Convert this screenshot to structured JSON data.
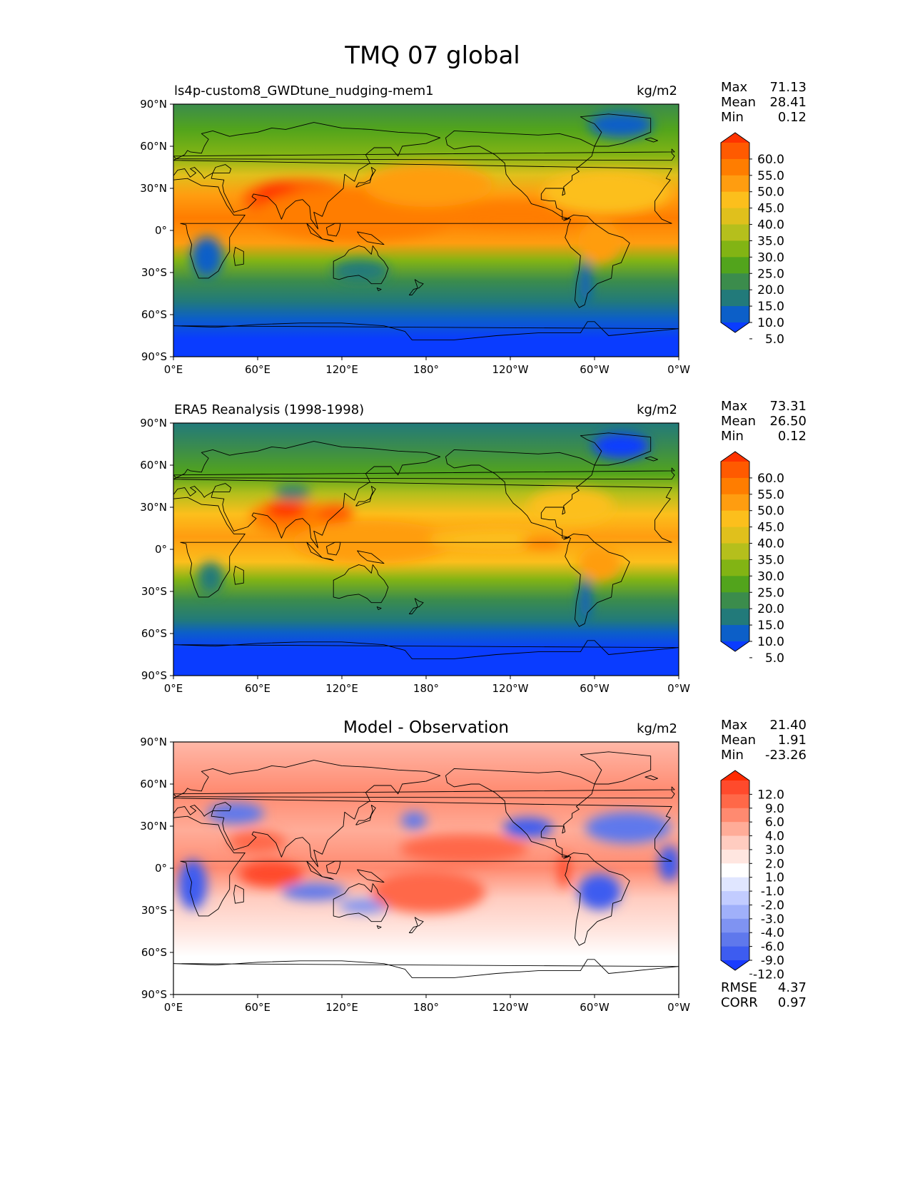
{
  "title": "TMQ 07 global",
  "lat_labels": [
    "90°N",
    "60°N",
    "30°N",
    "0°",
    "30°S",
    "60°S",
    "90°S"
  ],
  "lon_labels": [
    "0°E",
    "60°E",
    "120°E",
    "180°",
    "120°W",
    "60°W",
    "0°W"
  ],
  "panels": [
    {
      "id": "model",
      "title": "ls4p-custom8_GWDtune_nudging-mem1",
      "units": "kg/m2",
      "stats": [
        {
          "label": "Max",
          "value": "71.13"
        },
        {
          "label": "Mean",
          "value": "28.41"
        },
        {
          "label": "Min",
          "value": "0.12"
        }
      ],
      "colorbar_labels": [
        "60.0",
        "55.0",
        "50.0",
        "45.0",
        "40.0",
        "35.0",
        "30.0",
        "25.0",
        "20.0",
        "15.0",
        "10.0",
        "5.0"
      ],
      "colors": [
        "#ff3300",
        "#ff5a00",
        "#ff7d00",
        "#ff9d10",
        "#fcbf1c",
        "#e0c01c",
        "#b5bf1c",
        "#82b414",
        "#52a41c",
        "#3b8c4c",
        "#227a7a",
        "#0c5fc8",
        "#0a3cff"
      ]
    },
    {
      "id": "obs",
      "title": "ERA5 Reanalysis (1998-1998)",
      "units": "kg/m2",
      "stats": [
        {
          "label": "Max",
          "value": "73.31"
        },
        {
          "label": "Mean",
          "value": "26.50"
        },
        {
          "label": "Min",
          "value": "0.12"
        }
      ],
      "colorbar_labels": [
        "60.0",
        "55.0",
        "50.0",
        "45.0",
        "40.0",
        "35.0",
        "30.0",
        "25.0",
        "20.0",
        "15.0",
        "10.0",
        "5.0"
      ],
      "colors": [
        "#ff3300",
        "#ff5a00",
        "#ff7d00",
        "#ff9d10",
        "#fcbf1c",
        "#e0c01c",
        "#b5bf1c",
        "#82b414",
        "#52a41c",
        "#3b8c4c",
        "#227a7a",
        "#0c5fc8",
        "#0a3cff"
      ]
    },
    {
      "id": "diff",
      "title": "Model - Observation",
      "units": "kg/m2",
      "stats": [
        {
          "label": "Max",
          "value": "21.40"
        },
        {
          "label": "Mean",
          "value": "1.91"
        },
        {
          "label": "Min",
          "value": "-23.26"
        }
      ],
      "colorbar_labels": [
        "12.0",
        "9.0",
        "6.0",
        "4.0",
        "3.0",
        "2.0",
        "1.0",
        "-1.0",
        "-2.0",
        "-3.0",
        "-4.0",
        "-6.0",
        "-9.0",
        "-12.0"
      ],
      "colors": [
        "#ff2a00",
        "#ff4a2c",
        "#ff6848",
        "#ff8a70",
        "#ffac98",
        "#ffccc0",
        "#ffe6e0",
        "#ffffff",
        "#e0e6ff",
        "#c2ccff",
        "#a0b0fa",
        "#7f93f2",
        "#5f78ec",
        "#3d5cf0",
        "#1a3cff"
      ],
      "extra_stats": [
        {
          "label": "RMSE",
          "value": "4.37"
        },
        {
          "label": "CORR",
          "value": "0.97"
        }
      ]
    }
  ]
}
